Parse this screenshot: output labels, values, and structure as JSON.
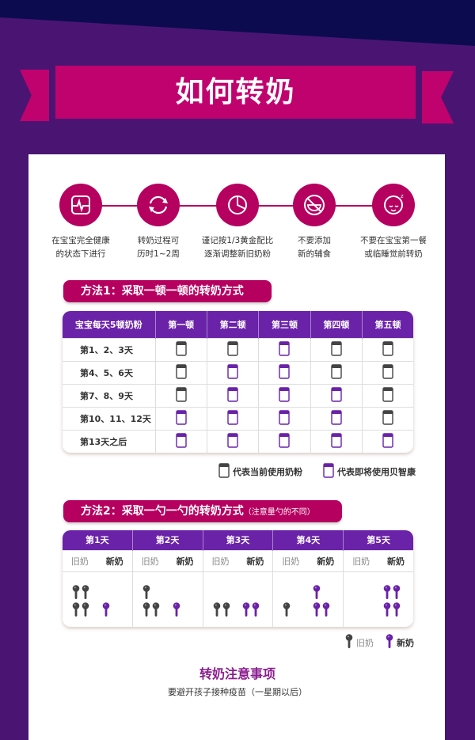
{
  "title": "如何转奶",
  "colors": {
    "magenta": "#b5005f",
    "purple": "#6a22a8",
    "background": "#4a1572",
    "navy": "#0c0b50",
    "old": "#444444"
  },
  "steps": [
    {
      "icon": "heart-monitor-icon",
      "line1": "在宝宝完全健康",
      "line2": "的状态下进行"
    },
    {
      "icon": "refresh-cycle-icon",
      "line1": "转奶过程可",
      "line2": "历时1~2周"
    },
    {
      "icon": "pie-chart-icon",
      "line1": "谨记按1/3黄金配比",
      "line2": "逐渐调整新旧奶粉"
    },
    {
      "icon": "no-food-icon",
      "line1": "不要添加",
      "line2": "新的辅食"
    },
    {
      "icon": "sleeping-baby-icon",
      "line1": "不要在宝宝第一餐",
      "line2": "或临睡觉前转奶"
    }
  ],
  "method1": {
    "title": "方法1：采取一顿一顿的转奶方式",
    "headers": [
      "宝宝每天5顿奶粉",
      "第一顿",
      "第二顿",
      "第三顿",
      "第四顿",
      "第五顿"
    ],
    "rows": [
      {
        "label": "第1、2、3天",
        "cans": [
          "old",
          "old",
          "new",
          "old",
          "old"
        ]
      },
      {
        "label": "第4、5、6天",
        "cans": [
          "old",
          "new",
          "new",
          "old",
          "old"
        ]
      },
      {
        "label": "第7、8、9天",
        "cans": [
          "old",
          "new",
          "new",
          "new",
          "old"
        ]
      },
      {
        "label": "第10、11、12天",
        "cans": [
          "new",
          "new",
          "new",
          "new",
          "old"
        ]
      },
      {
        "label": "第13天之后",
        "cans": [
          "new",
          "new",
          "new",
          "new",
          "new"
        ]
      }
    ],
    "legend_old": "代表当前使用奶粉",
    "legend_new": "代表即将使用贝智康"
  },
  "method2": {
    "title": "方法2：采取一勺一勺的转奶方式",
    "note": "（注意量勺的不同）",
    "old_label": "旧奶",
    "new_label": "新奶",
    "days": [
      {
        "label": "第1天",
        "old": 4,
        "new": 1
      },
      {
        "label": "第2天",
        "old": 3,
        "new": 1
      },
      {
        "label": "第3天",
        "old": 2,
        "new": 2
      },
      {
        "label": "第4天",
        "old": 1,
        "new": 3
      },
      {
        "label": "第5天",
        "old": 0,
        "new": 4
      }
    ],
    "legend_old": "旧奶",
    "legend_new": "新奶"
  },
  "notes": {
    "title": "转奶注意事项",
    "subtitle": "要避开孩子接种疫苗（一星期以后）"
  }
}
